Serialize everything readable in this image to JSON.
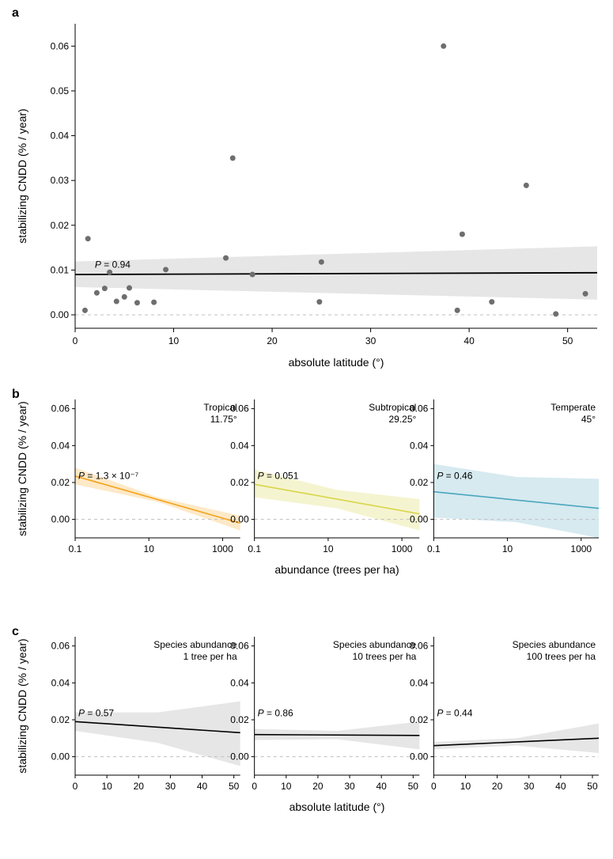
{
  "panel_a": {
    "label": "a",
    "type": "scatter",
    "xlabel": "absolute latitude (°)",
    "ylabel": "stabilizing CNDD (% / year)",
    "p_text": "P = 0.94",
    "xlim": [
      0,
      53
    ],
    "ylim": [
      -0.003,
      0.065
    ],
    "xticks": [
      0,
      10,
      20,
      30,
      40,
      50
    ],
    "yticks": [
      0.0,
      0.01,
      0.02,
      0.03,
      0.04,
      0.05,
      0.06
    ],
    "point_color": "#6e6e6e",
    "line_color": "#000000",
    "ribbon_color": "#e6e6e6",
    "grid_color": "#bfbfbf",
    "points": [
      {
        "x": 1.0,
        "y": 0.001
      },
      {
        "x": 1.3,
        "y": 0.017
      },
      {
        "x": 2.2,
        "y": 0.0049
      },
      {
        "x": 3.0,
        "y": 0.0059
      },
      {
        "x": 3.5,
        "y": 0.0095
      },
      {
        "x": 4.2,
        "y": 0.003
      },
      {
        "x": 5.0,
        "y": 0.004
      },
      {
        "x": 5.5,
        "y": 0.006
      },
      {
        "x": 6.3,
        "y": 0.0027
      },
      {
        "x": 8.0,
        "y": 0.0028
      },
      {
        "x": 9.2,
        "y": 0.0101
      },
      {
        "x": 15.3,
        "y": 0.0127
      },
      {
        "x": 16.0,
        "y": 0.035
      },
      {
        "x": 18.0,
        "y": 0.009
      },
      {
        "x": 24.8,
        "y": 0.0029
      },
      {
        "x": 25.0,
        "y": 0.0118
      },
      {
        "x": 37.4,
        "y": 0.06
      },
      {
        "x": 38.8,
        "y": 0.001
      },
      {
        "x": 39.3,
        "y": 0.018
      },
      {
        "x": 42.3,
        "y": 0.0029
      },
      {
        "x": 45.8,
        "y": 0.0289
      },
      {
        "x": 48.8,
        "y": 0.0002
      },
      {
        "x": 51.8,
        "y": 0.0047
      }
    ],
    "line": {
      "y0": 0.009,
      "y1": 0.0094
    },
    "ribbon": {
      "top0": 0.0119,
      "top1": 0.0153,
      "bot0": 0.0062,
      "bot1": 0.0034
    }
  },
  "panel_b": {
    "label": "b",
    "type": "line",
    "ylabel": "stabilizing CNDD (% / year)",
    "xlabel": "abundance (trees per ha)",
    "xlog": true,
    "xlim": [
      0.1,
      3000
    ],
    "ylim": [
      -0.01,
      0.065
    ],
    "xticks": [
      0.1,
      10,
      1000
    ],
    "yticks": [
      0.0,
      0.02,
      0.04,
      0.06
    ],
    "grid_color": "#bfbfbf",
    "subs": [
      {
        "title_line1": "Tropical",
        "title_line2": "11.75°",
        "p_text": "P = 1.3 × 10⁻⁷",
        "line_color": "#f5a11a",
        "ribbon_color": "#fde9c7",
        "line": {
          "y0": 0.0235,
          "y1": -0.002
        },
        "ribbon": {
          "top0": 0.028,
          "top1": 0.002,
          "bot0": 0.019,
          "bot1": -0.006
        }
      },
      {
        "title_line1": "Subtropical",
        "title_line2": "29.25°",
        "p_text": "P = 0.051",
        "line_color": "#d8d54a",
        "ribbon_color": "#f5f4d0",
        "line": {
          "y0": 0.019,
          "y1": 0.003
        },
        "ribbon": {
          "top0": 0.027,
          "top1": 0.011,
          "bot0": 0.012,
          "bot1": -0.006
        }
      },
      {
        "title_line1": "Temperate",
        "title_line2": "45°",
        "p_text": "P = 0.46",
        "line_color": "#4aa6bd",
        "ribbon_color": "#d6eaf0",
        "line": {
          "y0": 0.015,
          "y1": 0.006
        },
        "ribbon": {
          "top0": 0.03,
          "top1": 0.022,
          "bot0": 0.001,
          "bot1": -0.01
        }
      }
    ]
  },
  "panel_c": {
    "label": "c",
    "type": "line",
    "ylabel": "stabilizing CNDD (% / year)",
    "xlabel": "absolute latitude (°)",
    "xlog": false,
    "xlim": [
      0,
      52
    ],
    "ylim": [
      -0.01,
      0.065
    ],
    "xticks": [
      0,
      10,
      20,
      30,
      40,
      50
    ],
    "yticks": [
      0.0,
      0.02,
      0.04,
      0.06
    ],
    "grid_color": "#bfbfbf",
    "line_color": "#000000",
    "ribbon_color": "#e6e6e6",
    "subs": [
      {
        "title_line1": "Species abundance",
        "title_line2": "1 tree per ha",
        "p_text": "P = 0.57",
        "line": {
          "y0": 0.019,
          "y1": 0.013
        },
        "ribbon": {
          "top0": 0.024,
          "top1": 0.03,
          "bot0": 0.014,
          "bot1": -0.005
        }
      },
      {
        "title_line1": "Species abundance",
        "title_line2": "10 trees per ha",
        "p_text": "P = 0.86",
        "line": {
          "y0": 0.012,
          "y1": 0.0115
        },
        "ribbon": {
          "top0": 0.015,
          "top1": 0.019,
          "bot0": 0.009,
          "bot1": 0.004
        }
      },
      {
        "title_line1": "Species abundance",
        "title_line2": "100 trees per ha",
        "p_text": "P = 0.44",
        "line": {
          "y0": 0.006,
          "y1": 0.01
        },
        "ribbon": {
          "top0": 0.008,
          "top1": 0.018,
          "bot0": 0.004,
          "bot1": 0.002
        }
      }
    ]
  },
  "styles": {
    "background_color": "#ffffff",
    "axis_color": "#000000",
    "tick_font_size": 12,
    "axis_label_font_size": 14,
    "panel_label_font_size": 16,
    "marker_radius": 3.5,
    "line_width_main": 1.8,
    "line_width_sub": 1.6,
    "dashed_color": "#bfbfbf"
  }
}
